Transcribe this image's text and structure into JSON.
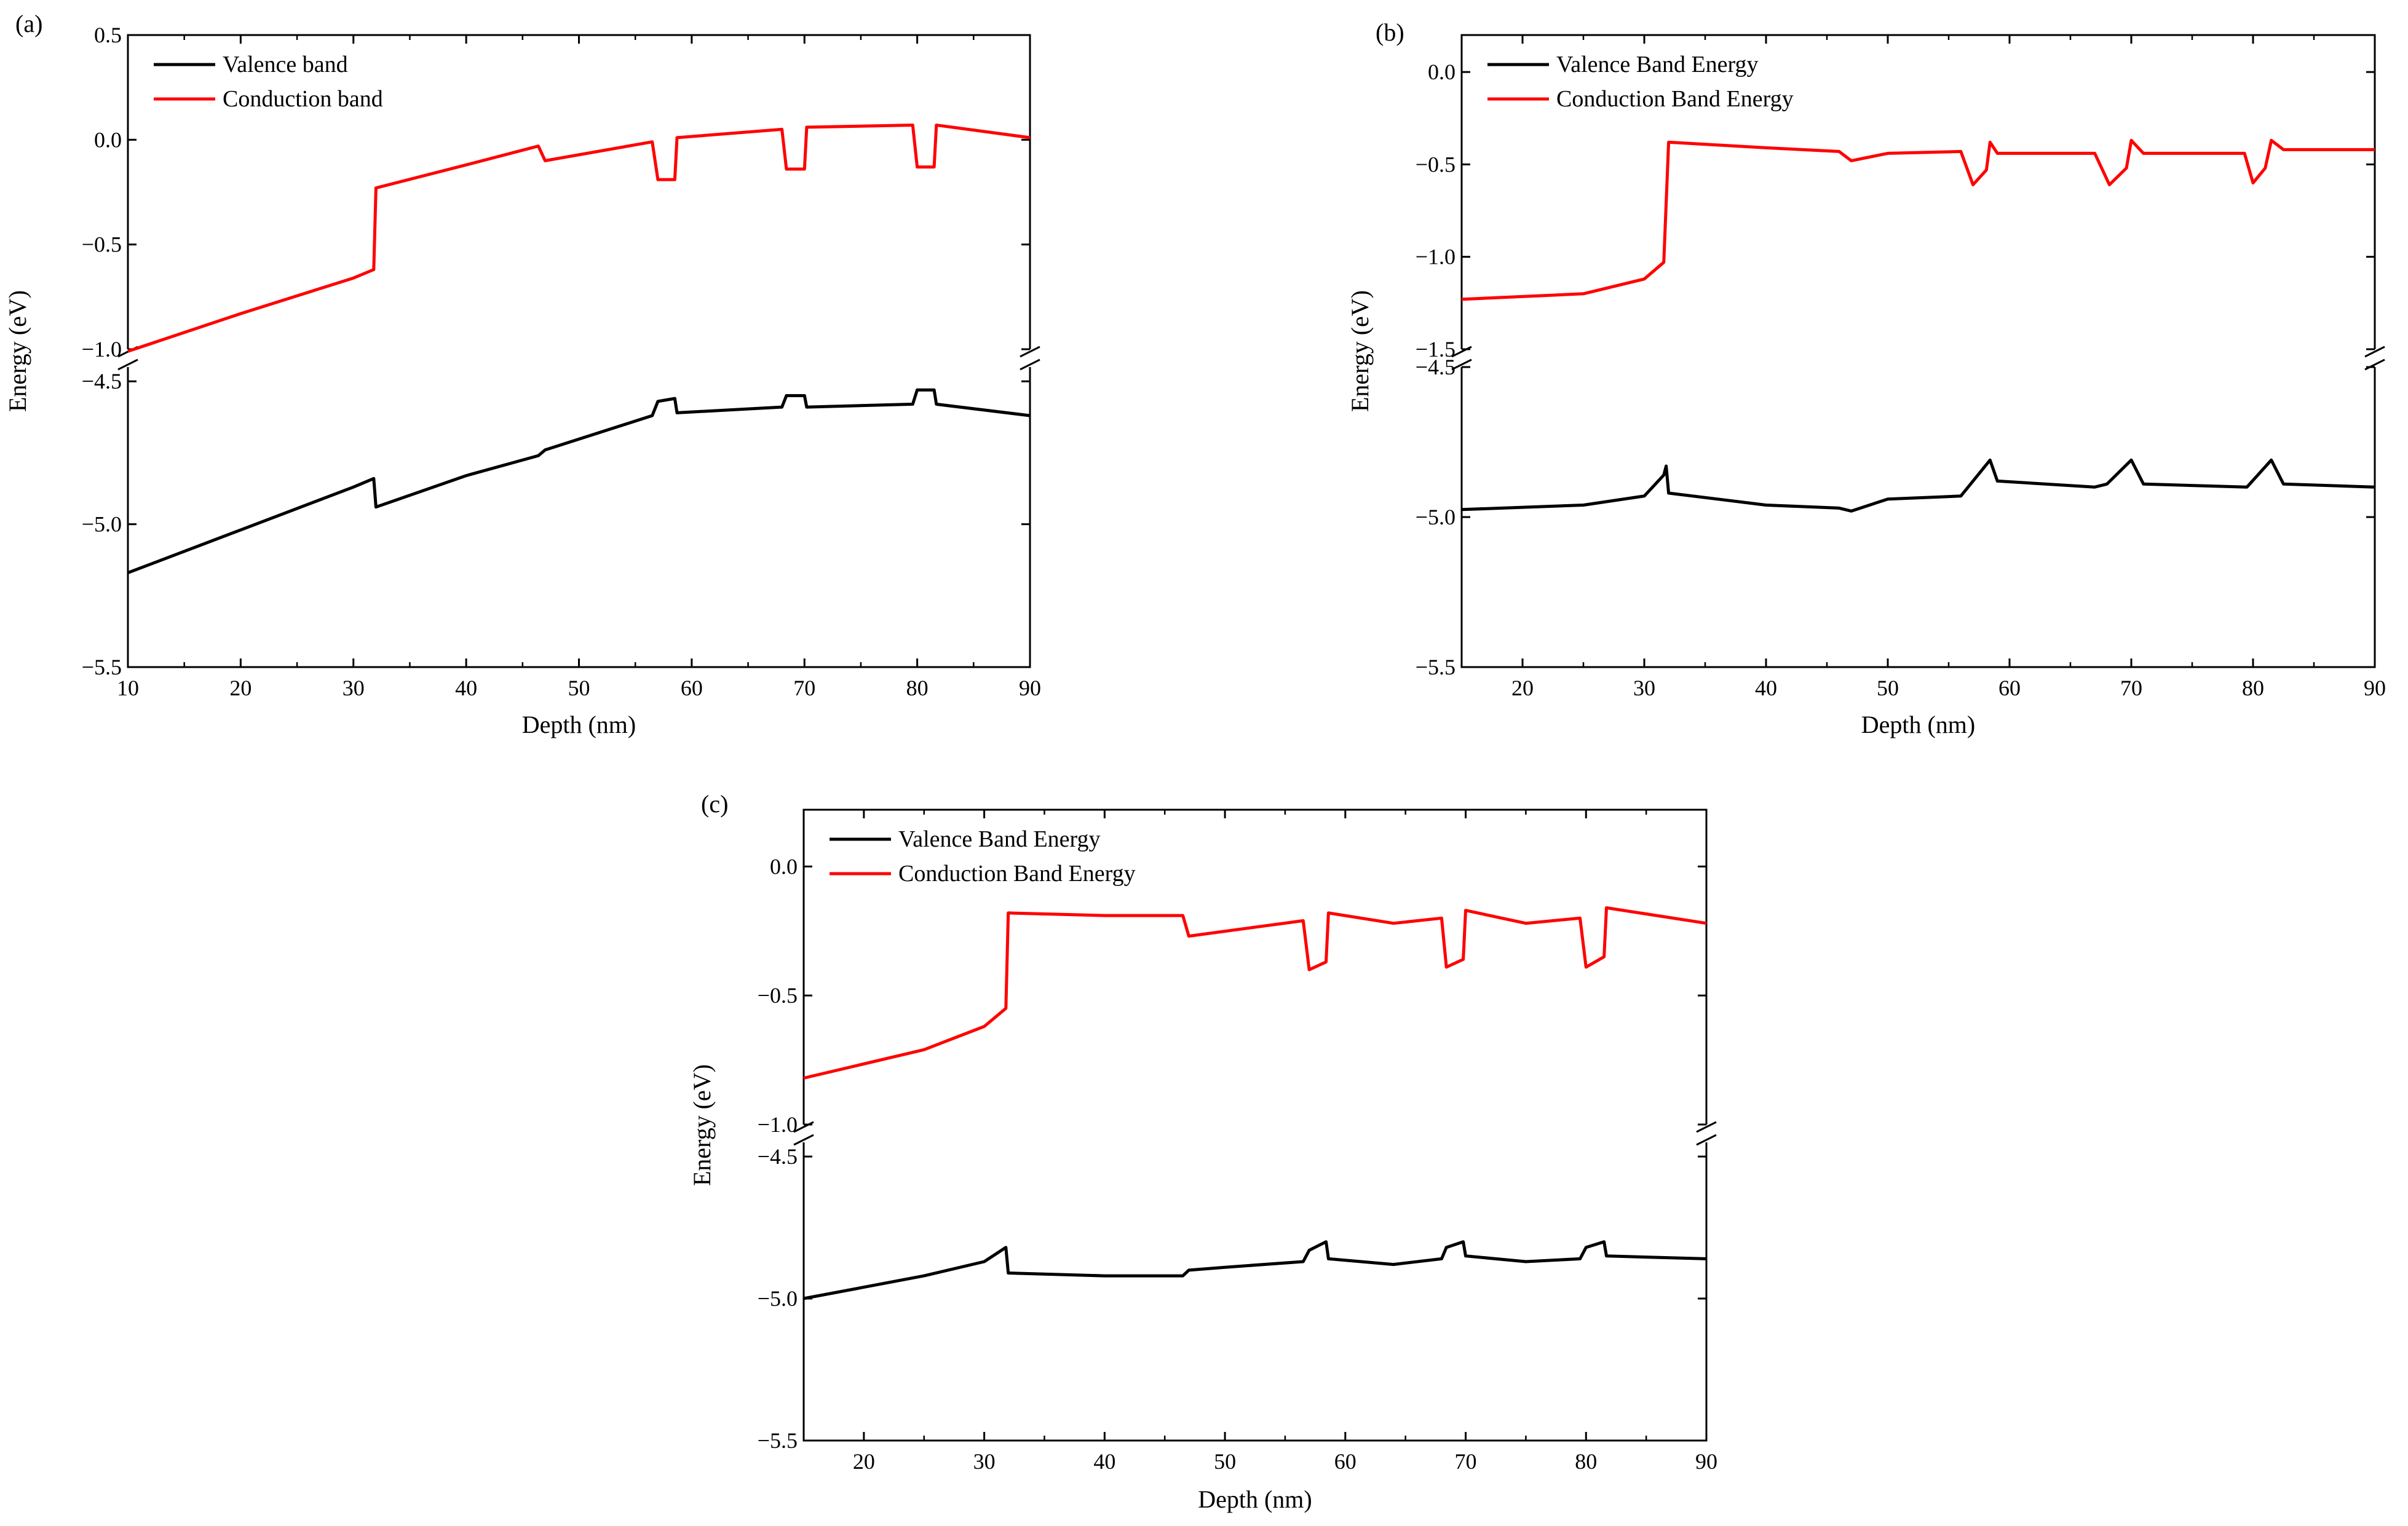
{
  "colors": {
    "valence": "#000000",
    "conduction": "#ff0000"
  },
  "chart_data": [
    {
      "panel_label": "(a)",
      "type": "line",
      "xlabel": "Depth (nm)",
      "ylabel": "Energy (eV)",
      "xlim": [
        10,
        90
      ],
      "x_ticks": [
        10,
        20,
        30,
        40,
        50,
        60,
        70,
        80,
        90
      ],
      "y_axis_break": true,
      "upper_ylim": [
        -1.0,
        0.5
      ],
      "upper_ticks": [
        {
          "v": 0.5,
          "t": "0.5"
        },
        {
          "v": 0.0,
          "t": "0.0"
        },
        {
          "v": -0.5,
          "t": "−0.5"
        },
        {
          "v": -1.0,
          "t": "−1.0"
        }
      ],
      "lower_ylim": [
        -5.5,
        -4.45
      ],
      "lower_ticks": [
        {
          "v": -4.5,
          "t": "−4.5"
        },
        {
          "v": -5.0,
          "t": "−5.0"
        },
        {
          "v": -5.5,
          "t": "−5.5"
        }
      ],
      "legend_position": "top-left",
      "series": [
        {
          "name": "Valence band",
          "color": "#000000",
          "segment": "lower",
          "points": [
            [
              10,
              -5.17
            ],
            [
              20,
              -5.02
            ],
            [
              30,
              -4.87
            ],
            [
              31.8,
              -4.84
            ],
            [
              32,
              -4.94
            ],
            [
              40,
              -4.83
            ],
            [
              46.4,
              -4.76
            ],
            [
              47,
              -4.74
            ],
            [
              56.5,
              -4.62
            ],
            [
              57,
              -4.57
            ],
            [
              58.5,
              -4.56
            ],
            [
              58.7,
              -4.61
            ],
            [
              68,
              -4.59
            ],
            [
              68.4,
              -4.55
            ],
            [
              70,
              -4.55
            ],
            [
              70.2,
              -4.59
            ],
            [
              79.6,
              -4.58
            ],
            [
              80,
              -4.53
            ],
            [
              81.5,
              -4.53
            ],
            [
              81.7,
              -4.58
            ],
            [
              90,
              -4.62
            ]
          ]
        },
        {
          "name": "Conduction band",
          "color": "#ff0000",
          "segment": "upper",
          "points": [
            [
              10,
              -1.01
            ],
            [
              20,
              -0.83
            ],
            [
              30,
              -0.66
            ],
            [
              31.8,
              -0.62
            ],
            [
              32,
              -0.23
            ],
            [
              40,
              -0.12
            ],
            [
              46.4,
              -0.03
            ],
            [
              47,
              -0.1
            ],
            [
              56.5,
              -0.01
            ],
            [
              57,
              -0.19
            ],
            [
              58.5,
              -0.19
            ],
            [
              58.7,
              0.01
            ],
            [
              68,
              0.05
            ],
            [
              68.4,
              -0.14
            ],
            [
              70,
              -0.14
            ],
            [
              70.2,
              0.06
            ],
            [
              79.6,
              0.07
            ],
            [
              80,
              -0.13
            ],
            [
              81.5,
              -0.13
            ],
            [
              81.7,
              0.07
            ],
            [
              90,
              0.01
            ]
          ]
        }
      ]
    },
    {
      "panel_label": "(b)",
      "type": "line",
      "xlabel": "Depth (nm)",
      "ylabel": "Energy (eV)",
      "xlim": [
        15,
        90
      ],
      "x_ticks": [
        20,
        30,
        40,
        50,
        60,
        70,
        80,
        90
      ],
      "y_axis_break": true,
      "upper_ylim": [
        -1.5,
        0.2
      ],
      "upper_ticks": [
        {
          "v": 0.0,
          "t": "0.0"
        },
        {
          "v": -0.5,
          "t": "−0.5"
        },
        {
          "v": -1.0,
          "t": "−1.0"
        },
        {
          "v": -1.5,
          "t": "−1.5"
        }
      ],
      "lower_ylim": [
        -5.5,
        -4.5
      ],
      "lower_ticks": [
        {
          "v": -4.5,
          "t": "−4.5"
        },
        {
          "v": -5.0,
          "t": "−5.0"
        },
        {
          "v": -5.5,
          "t": "−5.5"
        }
      ],
      "legend_position": "top-left",
      "series": [
        {
          "name": "Valence Band Energy",
          "color": "#000000",
          "segment": "lower",
          "points": [
            [
              15,
              -4.975
            ],
            [
              25,
              -4.96
            ],
            [
              30,
              -4.93
            ],
            [
              31.6,
              -4.86
            ],
            [
              31.8,
              -4.83
            ],
            [
              32,
              -4.92
            ],
            [
              40,
              -4.96
            ],
            [
              46,
              -4.97
            ],
            [
              47,
              -4.98
            ],
            [
              50,
              -4.94
            ],
            [
              56,
              -4.93
            ],
            [
              57,
              -4.88
            ],
            [
              58.4,
              -4.81
            ],
            [
              59,
              -4.88
            ],
            [
              67,
              -4.9
            ],
            [
              68,
              -4.89
            ],
            [
              70,
              -4.81
            ],
            [
              71,
              -4.89
            ],
            [
              79.5,
              -4.9
            ],
            [
              81.5,
              -4.81
            ],
            [
              82.5,
              -4.89
            ],
            [
              90,
              -4.9
            ]
          ]
        },
        {
          "name": "Conduction Band Energy",
          "color": "#ff0000",
          "segment": "upper",
          "points": [
            [
              15,
              -1.23
            ],
            [
              25,
              -1.2
            ],
            [
              30,
              -1.12
            ],
            [
              31.6,
              -1.03
            ],
            [
              32,
              -0.38
            ],
            [
              40,
              -0.41
            ],
            [
              46,
              -0.43
            ],
            [
              47,
              -0.48
            ],
            [
              50,
              -0.44
            ],
            [
              56,
              -0.43
            ],
            [
              57,
              -0.61
            ],
            [
              58.1,
              -0.53
            ],
            [
              58.4,
              -0.38
            ],
            [
              59,
              -0.44
            ],
            [
              67,
              -0.44
            ],
            [
              68.2,
              -0.61
            ],
            [
              69.6,
              -0.52
            ],
            [
              70,
              -0.37
            ],
            [
              71,
              -0.44
            ],
            [
              79.3,
              -0.44
            ],
            [
              80,
              -0.6
            ],
            [
              81,
              -0.52
            ],
            [
              81.5,
              -0.37
            ],
            [
              82.5,
              -0.42
            ],
            [
              90,
              -0.42
            ]
          ]
        }
      ]
    },
    {
      "panel_label": "(c)",
      "type": "line",
      "xlabel": "Depth (nm)",
      "ylabel": "Energy (eV)",
      "xlim": [
        15,
        90
      ],
      "x_ticks": [
        20,
        30,
        40,
        50,
        60,
        70,
        80,
        90
      ],
      "y_axis_break": true,
      "upper_ylim": [
        -1.0,
        0.22
      ],
      "upper_ticks": [
        {
          "v": 0.0,
          "t": "0.0"
        },
        {
          "v": -0.5,
          "t": "−0.5"
        },
        {
          "v": -1.0,
          "t": "−1.0"
        }
      ],
      "lower_ylim": [
        -5.5,
        -4.45
      ],
      "lower_ticks": [
        {
          "v": -4.5,
          "t": "−4.5"
        },
        {
          "v": -5.0,
          "t": "−5.0"
        },
        {
          "v": -5.5,
          "t": "−5.5"
        }
      ],
      "legend_position": "top-left",
      "series": [
        {
          "name": "Valence Band Energy",
          "color": "#000000",
          "segment": "lower",
          "points": [
            [
              15,
              -5.0
            ],
            [
              20,
              -4.96
            ],
            [
              25,
              -4.92
            ],
            [
              30,
              -4.87
            ],
            [
              31.8,
              -4.82
            ],
            [
              32,
              -4.91
            ],
            [
              40,
              -4.92
            ],
            [
              46.5,
              -4.92
            ],
            [
              47,
              -4.9
            ],
            [
              50,
              -4.89
            ],
            [
              56.5,
              -4.87
            ],
            [
              57,
              -4.83
            ],
            [
              58.4,
              -4.8
            ],
            [
              58.6,
              -4.86
            ],
            [
              64,
              -4.88
            ],
            [
              68,
              -4.86
            ],
            [
              68.4,
              -4.82
            ],
            [
              69.8,
              -4.8
            ],
            [
              70,
              -4.85
            ],
            [
              75,
              -4.87
            ],
            [
              79.5,
              -4.86
            ],
            [
              80,
              -4.82
            ],
            [
              81.5,
              -4.8
            ],
            [
              81.7,
              -4.85
            ],
            [
              90,
              -4.86
            ]
          ]
        },
        {
          "name": "Conduction Band Energy",
          "color": "#ff0000",
          "segment": "upper",
          "points": [
            [
              15,
              -0.82
            ],
            [
              25,
              -0.71
            ],
            [
              30,
              -0.62
            ],
            [
              31.8,
              -0.55
            ],
            [
              32,
              -0.18
            ],
            [
              40,
              -0.19
            ],
            [
              46.5,
              -0.19
            ],
            [
              47,
              -0.27
            ],
            [
              56.5,
              -0.21
            ],
            [
              57,
              -0.4
            ],
            [
              58.4,
              -0.37
            ],
            [
              58.6,
              -0.18
            ],
            [
              64,
              -0.22
            ],
            [
              68,
              -0.2
            ],
            [
              68.4,
              -0.39
            ],
            [
              69.8,
              -0.36
            ],
            [
              70,
              -0.17
            ],
            [
              75,
              -0.22
            ],
            [
              79.5,
              -0.2
            ],
            [
              80,
              -0.39
            ],
            [
              81.5,
              -0.35
            ],
            [
              81.7,
              -0.16
            ],
            [
              90,
              -0.22
            ]
          ]
        }
      ]
    }
  ]
}
